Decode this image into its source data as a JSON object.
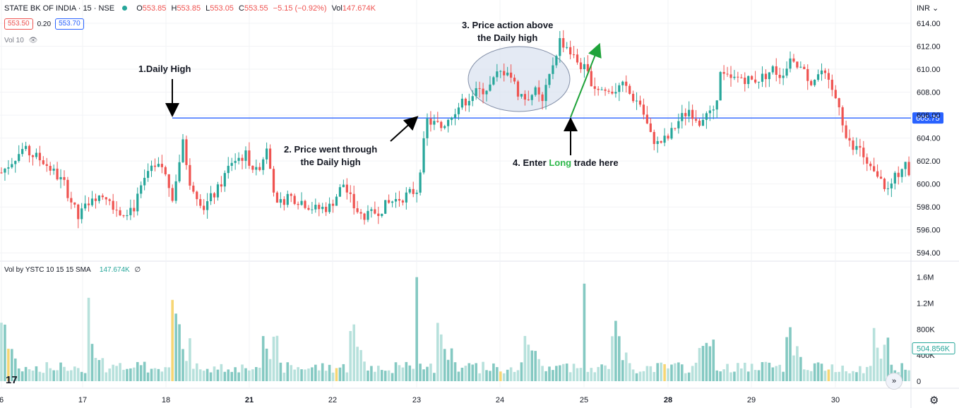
{
  "header": {
    "symbol": "STATE BK OF INDIA · 15 · NSE",
    "o_label": "O",
    "o": "553.85",
    "h_label": "H",
    "h": "553.85",
    "l_label": "L",
    "l": "553.05",
    "c_label": "C",
    "c": "553.55",
    "change": "−5.15 (−0.92%)",
    "vol_label": "Vol",
    "vol": "147.674K",
    "bid": "553.50",
    "spread": "0.20",
    "ask": "553.70",
    "vol_indicator": "Vol 10",
    "currency": "INR"
  },
  "volume_panel": {
    "title": "Vol by YSTC 10 15 15 SMA",
    "value": "147.674K",
    "zero": "∅"
  },
  "annotations": {
    "a1": "1.Daily High",
    "a2_line1": "2. Price went through",
    "a2_line2": "the Daily high",
    "a3_line1": "3. Price action above",
    "a3_line2": "the Daily high",
    "a4_pre": "4. Enter",
    "a4_long": "Long",
    "a4_post": "trade here"
  },
  "colors": {
    "up": "#26a69a",
    "down": "#ef5350",
    "level_line": "#2962ff",
    "ellipse_fill": "#dbe3f1",
    "arrow_green": "#1fa33a",
    "vol_up": "#84c9c2",
    "vol_down": "#b7e1dc",
    "vol_mid": "#f6d675"
  },
  "chart_data": {
    "type": "candlestick",
    "price_axis": {
      "ticks": [
        "614.00",
        "612.00",
        "610.00",
        "608.00",
        "606.00",
        "604.00",
        "602.00",
        "600.00",
        "598.00",
        "596.00",
        "594.00"
      ],
      "range": [
        593.4,
        614.8
      ]
    },
    "volume_axis": {
      "ticks": [
        "1.6M",
        "1.2M",
        "800K",
        "400K",
        "0"
      ],
      "range": [
        0,
        1650000
      ]
    },
    "x_labels": [
      "6",
      "17",
      "18",
      "21",
      "22",
      "23",
      "24",
      "25",
      "28",
      "29",
      "30"
    ],
    "daily_high_level": 605.75,
    "daily_high_label": "605.75",
    "last_volume_label": "504.856K",
    "price_path": [
      [
        0,
        601
      ],
      [
        6,
        603
      ],
      [
        12,
        602
      ],
      [
        18,
        600
      ],
      [
        22,
        597
      ],
      [
        26,
        599
      ],
      [
        30,
        599
      ],
      [
        34,
        597.5
      ],
      [
        38,
        598
      ],
      [
        42,
        601
      ],
      [
        46,
        601.5
      ],
      [
        49,
        599
      ],
      [
        52,
        603.5
      ],
      [
        54,
        600.3
      ],
      [
        58,
        598
      ],
      [
        62,
        599.5
      ],
      [
        66,
        602
      ],
      [
        70,
        602.5
      ],
      [
        73,
        601
      ],
      [
        76,
        603
      ],
      [
        79,
        598
      ],
      [
        82,
        599
      ],
      [
        86,
        598.5
      ],
      [
        90,
        597.8
      ],
      [
        94,
        598
      ],
      [
        98,
        600
      ],
      [
        101,
        598
      ],
      [
        104,
        597
      ],
      [
        108,
        597.7
      ],
      [
        112,
        598.5
      ],
      [
        116,
        599
      ],
      [
        119,
        599.5
      ],
      [
        120,
        601.5
      ],
      [
        122,
        605.5
      ],
      [
        126,
        605
      ],
      [
        130,
        606.5
      ],
      [
        135,
        607.8
      ],
      [
        140,
        608.5
      ],
      [
        142,
        609.5
      ],
      [
        145,
        610
      ],
      [
        148,
        608
      ],
      [
        150,
        607.5
      ],
      [
        153,
        608
      ],
      [
        155,
        607
      ],
      [
        158,
        610.5
      ],
      [
        160,
        612.5
      ],
      [
        162,
        612
      ],
      [
        164,
        611
      ],
      [
        167,
        610
      ],
      [
        170,
        608.5
      ],
      [
        174,
        608
      ],
      [
        178,
        608.5
      ],
      [
        181,
        607.5
      ],
      [
        183,
        607
      ],
      [
        186,
        604.2
      ],
      [
        188,
        603.5
      ],
      [
        191,
        604
      ],
      [
        194,
        605.5
      ],
      [
        197,
        606.5
      ],
      [
        200,
        605.5
      ],
      [
        202,
        606
      ],
      [
        204,
        606
      ],
      [
        206,
        609.5
      ],
      [
        209,
        609
      ],
      [
        212,
        609.3
      ],
      [
        215,
        609
      ],
      [
        218,
        609.3
      ],
      [
        221,
        610
      ],
      [
        223,
        609.5
      ],
      [
        226,
        610.5
      ],
      [
        229,
        610
      ],
      [
        232,
        609
      ],
      [
        235,
        609.8
      ],
      [
        238,
        608
      ],
      [
        240,
        607
      ],
      [
        242,
        604
      ],
      [
        244,
        603
      ],
      [
        246,
        603.2
      ],
      [
        248,
        601.5
      ],
      [
        251,
        600.5
      ],
      [
        254,
        599.5
      ],
      [
        256,
        600.5
      ],
      [
        259,
        602
      ],
      [
        260,
        600.5
      ]
    ]
  }
}
